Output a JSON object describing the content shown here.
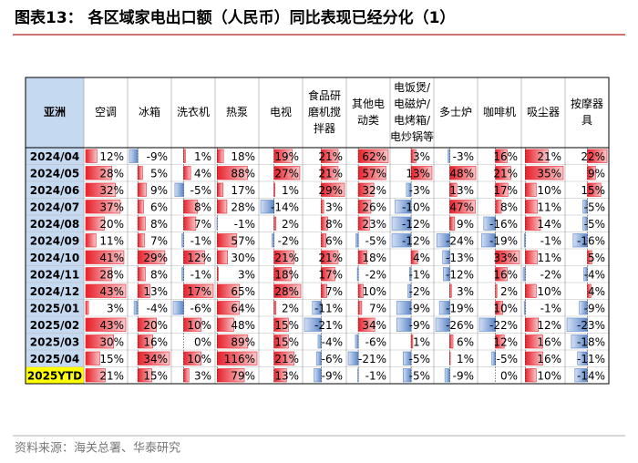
{
  "title": "图表13： 各区域家电出口额（人民币）同比表现已经分化（1）",
  "table": {
    "corner": "亚洲",
    "columns": [
      [
        "空调"
      ],
      [
        "冰箱"
      ],
      [
        "洗衣机"
      ],
      [
        "热泵"
      ],
      [
        "电视"
      ],
      [
        "食品研",
        "磨机搅",
        "拌器"
      ],
      [
        "其他电",
        "动类"
      ],
      [
        "电饭煲/",
        "电磁炉/",
        "电烤箱/",
        "电炒锅等"
      ],
      [
        "多士炉"
      ],
      [
        "咖啡机"
      ],
      [
        "吸尘器"
      ],
      [
        "按摩器",
        "具"
      ]
    ],
    "rows": [
      {
        "label": "2024/04",
        "cells": [
          "12%",
          "-9%",
          "1%",
          "18%",
          "19%",
          "21%",
          "62%",
          "3%",
          "-3%",
          "16%",
          "21%",
          "22%"
        ]
      },
      {
        "label": "2024/05",
        "cells": [
          "28%",
          "5%",
          "4%",
          "88%",
          "27%",
          "21%",
          "57%",
          "13%",
          "48%",
          "21%",
          "35%",
          "9%"
        ]
      },
      {
        "label": "2024/06",
        "cells": [
          "32%",
          "9%",
          "-5%",
          "17%",
          "1%",
          "29%",
          "32%",
          "-3%",
          "13%",
          "17%",
          "10%",
          "15%"
        ]
      },
      {
        "label": "2024/07",
        "cells": [
          "37%",
          "6%",
          "8%",
          "28%",
          "-14%",
          "3%",
          "26%",
          "-10%",
          "47%",
          "8%",
          "11%",
          "-5%"
        ]
      },
      {
        "label": "2024/08",
        "cells": [
          "20%",
          "8%",
          "7%",
          "-1%",
          "2%",
          "8%",
          "23%",
          "-12%",
          "9%",
          "-16%",
          "14%",
          "-5%"
        ]
      },
      {
        "label": "2024/09",
        "cells": [
          "11%",
          "7%",
          "-1%",
          "57%",
          "-2%",
          "6%",
          "-5%",
          "-12%",
          "-24%",
          "-19%",
          "-1%",
          "-16%"
        ]
      },
      {
        "label": "2024/10",
        "cells": [
          "41%",
          "29%",
          "12%",
          "30%",
          "21%",
          "21%",
          "18%",
          "4%",
          "-13%",
          "33%",
          "11%",
          "5%"
        ]
      },
      {
        "label": "2024/11",
        "cells": [
          "28%",
          "8%",
          "-1%",
          "3%",
          "18%",
          "17%",
          "-2%",
          "-1%",
          "-12%",
          "16%",
          "-2%",
          "-4%"
        ]
      },
      {
        "label": "2024/12",
        "cells": [
          "43%",
          "13%",
          "17%",
          "65%",
          "28%",
          "7%",
          "10%",
          "-2%",
          "3%",
          "2%",
          "10%",
          "4%"
        ]
      },
      {
        "label": "2025/01",
        "cells": [
          "3%",
          "-4%",
          "-6%",
          "64%",
          "2%",
          "-11%",
          "7%",
          "-9%",
          "-19%",
          "10%",
          "-1%",
          "-9%"
        ]
      },
      {
        "label": "2025/02",
        "cells": [
          "43%",
          "20%",
          "10%",
          "48%",
          "15%",
          "-21%",
          "34%",
          "-9%",
          "-26%",
          "-22%",
          "12%",
          "-23%"
        ]
      },
      {
        "label": "2025/03",
        "cells": [
          "30%",
          "16%",
          "0%",
          "89%",
          "15%",
          "-4%",
          "-6%",
          "1%",
          "6%",
          "12%",
          "16%",
          "-18%"
        ]
      },
      {
        "label": "2025/04",
        "cells": [
          "15%",
          "34%",
          "10%",
          "116%",
          "21%",
          "-6%",
          "-21%",
          "-5%",
          "1%",
          "-5%",
          "16%",
          "-11%"
        ]
      },
      {
        "label": "2025YTD",
        "cells": [
          "21%",
          "15%",
          "3%",
          "79%",
          "13%",
          "-9%",
          "-1%",
          "-5%",
          "-9%",
          "0%",
          "10%",
          "-14%"
        ]
      }
    ]
  },
  "source": "资料来源：海关总署、华泰研究"
}
